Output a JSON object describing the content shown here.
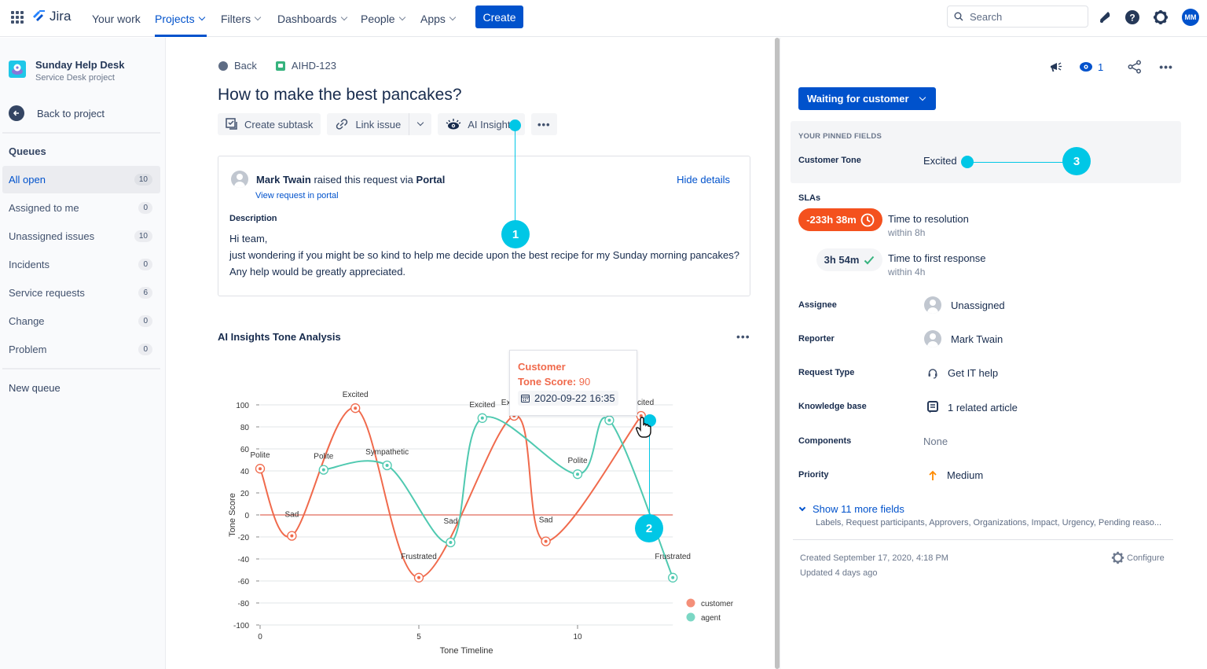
{
  "topnav": {
    "app_name": "Jira",
    "items": [
      {
        "label": "Your work",
        "has_dropdown": false,
        "active": false
      },
      {
        "label": "Projects",
        "has_dropdown": true,
        "active": true
      },
      {
        "label": "Filters",
        "has_dropdown": true,
        "active": false
      },
      {
        "label": "Dashboards",
        "has_dropdown": true,
        "active": false
      },
      {
        "label": "People",
        "has_dropdown": true,
        "active": false
      },
      {
        "label": "Apps",
        "has_dropdown": true,
        "active": false
      }
    ],
    "create_label": "Create",
    "search_placeholder": "Search",
    "avatar_initials": "MM"
  },
  "sidebar": {
    "project_name": "Sunday Help Desk",
    "project_type": "Service Desk project",
    "back_label": "Back to project",
    "queues_heading": "Queues",
    "queues": [
      {
        "label": "All open",
        "count": "10",
        "active": true
      },
      {
        "label": "Assigned to me",
        "count": "0",
        "active": false
      },
      {
        "label": "Unassigned issues",
        "count": "10",
        "active": false
      },
      {
        "label": "Incidents",
        "count": "0",
        "active": false
      },
      {
        "label": "Service requests",
        "count": "6",
        "active": false
      },
      {
        "label": "Change",
        "count": "0",
        "active": false
      },
      {
        "label": "Problem",
        "count": "0",
        "active": false
      }
    ],
    "new_queue_label": "New queue"
  },
  "issue": {
    "back_label": "Back",
    "key": "AIHD-123",
    "title": "How to make the best pancakes?",
    "toolbar": {
      "create_subtask": "Create subtask",
      "link_issue": "Link issue",
      "ai_insights": "AI Insights"
    },
    "request": {
      "reporter": "Mark Twain",
      "raised_text": " raised this request via ",
      "channel": "Portal",
      "view_portal": "View request in portal",
      "hide_details": "Hide details",
      "description_label": "Description",
      "description_lines": [
        "Hi team,",
        "just wondering if you might be so kind to help me decide upon the best recipe for my Sunday morning pancakes?",
        "Any help would be greatly appreciated."
      ]
    }
  },
  "tooltip": {
    "series": "Customer",
    "score_label": "Tone Score:",
    "score_value": "90",
    "date": "2020-09-22 16:35"
  },
  "chart_data": {
    "type": "line",
    "title": "AI Insights Tone Analysis",
    "xlabel": "Tone Timeline",
    "ylabel": "Tone Score",
    "xlim": [
      0,
      13
    ],
    "ylim": [
      -100,
      100
    ],
    "x_ticks": [
      "0",
      "5",
      "10"
    ],
    "y_ticks": [
      "100",
      "80",
      "60",
      "40",
      "20",
      "0",
      "-20",
      "-40",
      "-60",
      "-80",
      "-100"
    ],
    "grid": true,
    "legend_position": "right-bottom",
    "series": [
      {
        "name": "customer",
        "color": "#f06a4c",
        "points": [
          {
            "x": 0,
            "y": 42,
            "label": "Polite"
          },
          {
            "x": 1,
            "y": -19,
            "label": "Sad"
          },
          {
            "x": 3,
            "y": 97,
            "label": "Excited"
          },
          {
            "x": 5,
            "y": -57,
            "label": "Frustrated"
          },
          {
            "x": 8,
            "y": 90,
            "label": "Excited"
          },
          {
            "x": 9,
            "y": -24,
            "label": "Sad"
          },
          {
            "x": 12,
            "y": 90,
            "label": "Excited"
          }
        ]
      },
      {
        "name": "agent",
        "color": "#4fc9b0",
        "points": [
          {
            "x": 2,
            "y": 41,
            "label": "Polite"
          },
          {
            "x": 4,
            "y": 45,
            "label": "Sympathetic"
          },
          {
            "x": 6,
            "y": -25,
            "label": "Sad"
          },
          {
            "x": 7,
            "y": 88,
            "label": "Excited"
          },
          {
            "x": 10,
            "y": 37,
            "label": "Polite"
          },
          {
            "x": 11,
            "y": 86,
            "label": ""
          },
          {
            "x": 13,
            "y": -57,
            "label": "Frustrated"
          }
        ]
      }
    ]
  },
  "right_panel": {
    "watchers_count": "1",
    "status": "Waiting for customer",
    "pinned_heading": "YOUR PINNED FIELDS",
    "customer_tone_label": "Customer Tone",
    "customer_tone_value": "Excited",
    "slas_heading": "SLAs",
    "slas": [
      {
        "time": "-233h 38m",
        "name": "Time to resolution",
        "target": "within 8h",
        "state": "breached"
      },
      {
        "time": "3h 54m",
        "name": "Time to first response",
        "target": "within 4h",
        "state": "met"
      }
    ],
    "fields": [
      {
        "label": "Assignee",
        "value": "Unassigned",
        "icon": "avatar"
      },
      {
        "label": "Reporter",
        "value": "Mark Twain",
        "icon": "avatar"
      },
      {
        "label": "Request Type",
        "value": "Get IT help",
        "icon": "headset"
      },
      {
        "label": "Knowledge base",
        "value": "1 related article",
        "icon": "article"
      },
      {
        "label": "Components",
        "value": "None",
        "icon": ""
      },
      {
        "label": "Priority",
        "value": "Medium",
        "icon": "priority-up"
      }
    ],
    "show_more": "Show 11 more fields",
    "show_more_sub": "Labels, Request participants, Approvers, Organizations, Impact, Urgency, Pending reaso...",
    "created": "Created September 17, 2020, 4:18 PM",
    "updated": "Updated 4 days ago",
    "configure": "Configure"
  },
  "annotations": [
    "1",
    "2",
    "3"
  ],
  "colors": {
    "brand": "#0052cc",
    "customer": "#f06a4c",
    "agent": "#4fc9b0",
    "marker": "#00c7e6",
    "sla_breached": "#f4511e",
    "sla_met": "#36b37e"
  }
}
